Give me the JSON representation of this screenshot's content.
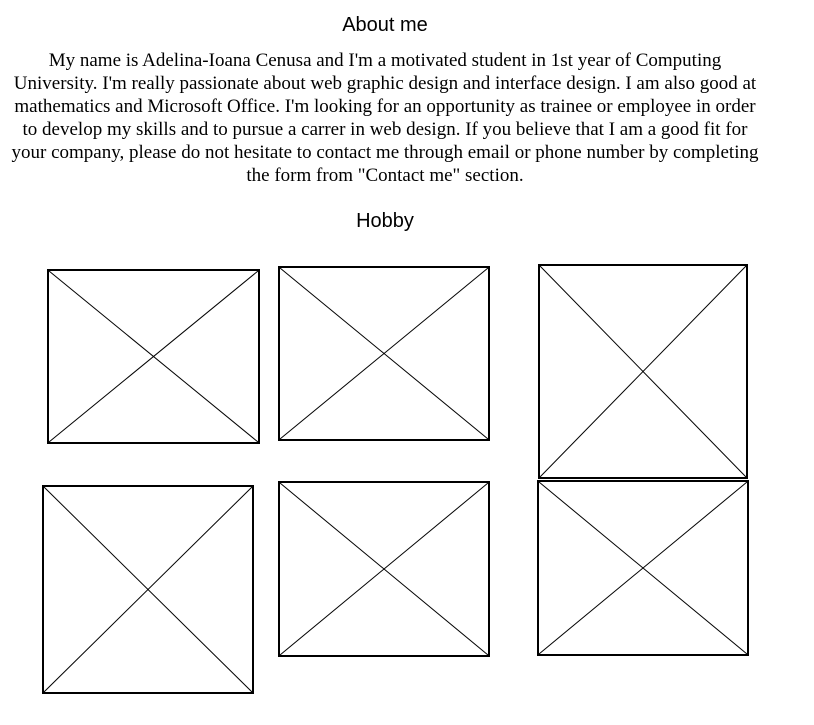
{
  "about": {
    "heading": "About me",
    "bio": "My name is Adelina-Ioana Cenusa and I'm a motivated student in 1st year of Computing University. I'm really passionate about web graphic design and interface design. I am also good at mathematics and Microsoft Office. I'm looking for an opportunity as trainee or employee in order to develop my skills and to pursue a carrer in web design. If you believe that I am a good fit for your company, please do not hesitate to contact me through email or phone number by completing the form from \"Contact me\" section."
  },
  "hobby": {
    "heading": "Hobby",
    "images": [
      {
        "icon": "image-placeholder-icon"
      },
      {
        "icon": "image-placeholder-icon"
      },
      {
        "icon": "image-placeholder-icon"
      },
      {
        "icon": "image-placeholder-icon"
      },
      {
        "icon": "image-placeholder-icon"
      },
      {
        "icon": "image-placeholder-icon"
      }
    ]
  },
  "colors": {
    "text": "#000000",
    "background": "#ffffff",
    "placeholder_border": "#000000"
  }
}
